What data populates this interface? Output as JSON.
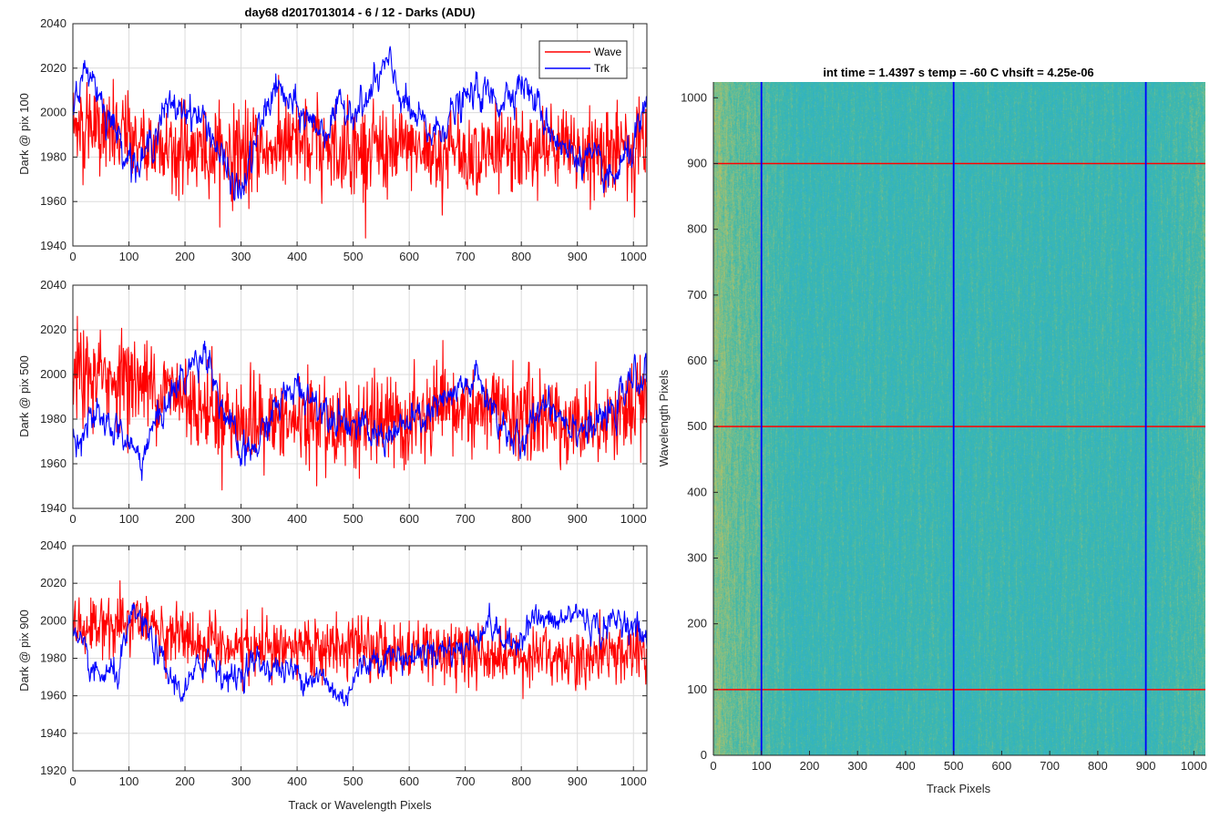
{
  "colors": {
    "wave": "#ff0000",
    "trk": "#0000ff",
    "grid": "#dcdcdc",
    "axis": "#262626"
  },
  "chart_data": [
    {
      "type": "line",
      "title": "day68 d2017013014 - 6 / 12 - Darks (ADU)",
      "xlabel": "",
      "ylabel": "Dark @ pix 100",
      "xlim": [
        0,
        1024
      ],
      "ylim": [
        1940,
        2040
      ],
      "x_ticks": [
        "0",
        "100",
        "200",
        "300",
        "400",
        "500",
        "600",
        "700",
        "800",
        "900",
        "1000"
      ],
      "y_ticks": [
        "1940",
        "1960",
        "1980",
        "2000",
        "2020",
        "2040"
      ],
      "grid": true,
      "legend": {
        "placement": "top-right",
        "entries": [
          "Wave",
          "Trk"
        ]
      },
      "series": [
        {
          "name": "Wave",
          "color": "#ff0000",
          "mean": 1985,
          "noise": 10,
          "trend": [
            [
              0,
              1995
            ],
            [
              100,
              1988
            ],
            [
              200,
              1983
            ],
            [
              300,
              1982
            ],
            [
              400,
              1985
            ],
            [
              500,
              1984
            ],
            [
              600,
              1983
            ],
            [
              700,
              1982
            ],
            [
              800,
              1983
            ],
            [
              900,
              1982
            ],
            [
              1024,
              1985
            ]
          ]
        },
        {
          "name": "Trk",
          "color": "#0000ff",
          "mean": 1995,
          "noise": 4,
          "trend": [
            [
              0,
              2008
            ],
            [
              30,
              2020
            ],
            [
              60,
              2000
            ],
            [
              90,
              1985
            ],
            [
              120,
              1975
            ],
            [
              160,
              2000
            ],
            [
              200,
              2003
            ],
            [
              240,
              1995
            ],
            [
              280,
              1970
            ],
            [
              300,
              1963
            ],
            [
              330,
              1990
            ],
            [
              360,
              2012
            ],
            [
              400,
              2000
            ],
            [
              450,
              1992
            ],
            [
              480,
              2002
            ],
            [
              520,
              2003
            ],
            [
              560,
              2022
            ],
            [
              600,
              2000
            ],
            [
              640,
              1990
            ],
            [
              680,
              2000
            ],
            [
              720,
              2010
            ],
            [
              760,
              2005
            ],
            [
              800,
              2015
            ],
            [
              840,
              1998
            ],
            [
              880,
              1982
            ],
            [
              920,
              1980
            ],
            [
              960,
              1968
            ],
            [
              1000,
              1985
            ],
            [
              1024,
              2000
            ]
          ]
        }
      ]
    },
    {
      "type": "line",
      "title": "",
      "xlabel": "",
      "ylabel": "Dark @ pix 500",
      "xlim": [
        0,
        1024
      ],
      "ylim": [
        1940,
        2040
      ],
      "x_ticks": [
        "0",
        "100",
        "200",
        "300",
        "400",
        "500",
        "600",
        "700",
        "800",
        "900",
        "1000"
      ],
      "y_ticks": [
        "1940",
        "1960",
        "1980",
        "2000",
        "2020",
        "2040"
      ],
      "grid": true,
      "series": [
        {
          "name": "Wave",
          "color": "#ff0000",
          "mean": 1985,
          "noise": 10,
          "trend": [
            [
              0,
              2000
            ],
            [
              100,
              1998
            ],
            [
              200,
              1990
            ],
            [
              300,
              1978
            ],
            [
              400,
              1978
            ],
            [
              500,
              1978
            ],
            [
              600,
              1978
            ],
            [
              700,
              1985
            ],
            [
              800,
              1982
            ],
            [
              900,
              1978
            ],
            [
              1024,
              1985
            ]
          ]
        },
        {
          "name": "Trk",
          "color": "#0000ff",
          "mean": 1985,
          "noise": 4,
          "trend": [
            [
              0,
              1972
            ],
            [
              40,
              1980
            ],
            [
              80,
              1975
            ],
            [
              120,
              1962
            ],
            [
              160,
              1985
            ],
            [
              200,
              2000
            ],
            [
              240,
              2012
            ],
            [
              260,
              1990
            ],
            [
              300,
              1963
            ],
            [
              330,
              1968
            ],
            [
              360,
              1985
            ],
            [
              400,
              1995
            ],
            [
              450,
              1985
            ],
            [
              500,
              1978
            ],
            [
              540,
              1972
            ],
            [
              580,
              1975
            ],
            [
              620,
              1980
            ],
            [
              680,
              1990
            ],
            [
              720,
              1998
            ],
            [
              760,
              1980
            ],
            [
              800,
              1966
            ],
            [
              840,
              1990
            ],
            [
              880,
              1980
            ],
            [
              920,
              1975
            ],
            [
              960,
              1982
            ],
            [
              1000,
              1998
            ],
            [
              1024,
              2000
            ]
          ]
        }
      ]
    },
    {
      "type": "line",
      "title": "",
      "xlabel": "Track or Wavelength Pixels",
      "ylabel": "Dark @ pix 900",
      "xlim": [
        0,
        1024
      ],
      "ylim": [
        1920,
        2040
      ],
      "x_ticks": [
        "0",
        "100",
        "200",
        "300",
        "400",
        "500",
        "600",
        "700",
        "800",
        "900",
        "1000"
      ],
      "y_ticks": [
        "1920",
        "1940",
        "1960",
        "1980",
        "2000",
        "2020",
        "2040"
      ],
      "grid": true,
      "series": [
        {
          "name": "Wave",
          "color": "#ff0000",
          "mean": 1988,
          "noise": 8,
          "trend": [
            [
              0,
              1995
            ],
            [
              100,
              2000
            ],
            [
              200,
              1990
            ],
            [
              300,
              1985
            ],
            [
              400,
              1985
            ],
            [
              500,
              1985
            ],
            [
              600,
              1985
            ],
            [
              700,
              1983
            ],
            [
              800,
              1982
            ],
            [
              900,
              1980
            ],
            [
              1024,
              1985
            ]
          ]
        },
        {
          "name": "Trk",
          "color": "#0000ff",
          "mean": 1980,
          "noise": 4,
          "trend": [
            [
              0,
              1992
            ],
            [
              40,
              1970
            ],
            [
              80,
              1972
            ],
            [
              110,
              2005
            ],
            [
              140,
              1990
            ],
            [
              170,
              1970
            ],
            [
              200,
              1962
            ],
            [
              240,
              1982
            ],
            [
              280,
              1968
            ],
            [
              320,
              1978
            ],
            [
              360,
              1975
            ],
            [
              400,
              1972
            ],
            [
              440,
              1970
            ],
            [
              480,
              1958
            ],
            [
              520,
              1978
            ],
            [
              560,
              1982
            ],
            [
              600,
              1980
            ],
            [
              640,
              1985
            ],
            [
              700,
              1985
            ],
            [
              740,
              2000
            ],
            [
              780,
              1985
            ],
            [
              820,
              2002
            ],
            [
              860,
              1998
            ],
            [
              900,
              2005
            ],
            [
              940,
              1995
            ],
            [
              980,
              2002
            ],
            [
              1024,
              1990
            ]
          ]
        }
      ]
    },
    {
      "type": "heatmap",
      "title": "int time = 1.4397 s    temp = -60 C    vhsift = 4.25e-06",
      "xlabel": "Track Pixels",
      "ylabel": "Wavelength Pixels",
      "xlim": [
        0,
        1024
      ],
      "ylim": [
        0,
        1024
      ],
      "x_ticks": [
        "0",
        "100",
        "200",
        "300",
        "400",
        "500",
        "600",
        "700",
        "800",
        "900",
        "1000"
      ],
      "y_ticks": [
        "0",
        "100",
        "200",
        "300",
        "400",
        "500",
        "600",
        "700",
        "800",
        "900",
        "1000"
      ],
      "colormap": [
        "#4fb2d3",
        "#2fb3c2",
        "#44b9a8",
        "#88bf82",
        "#c3c05a"
      ],
      "vertical_markers": [
        100,
        500,
        900
      ],
      "horizontal_markers": [
        100,
        500,
        900
      ],
      "vertical_marker_color": "#0000ff",
      "horizontal_marker_color": "#ff0000"
    }
  ]
}
